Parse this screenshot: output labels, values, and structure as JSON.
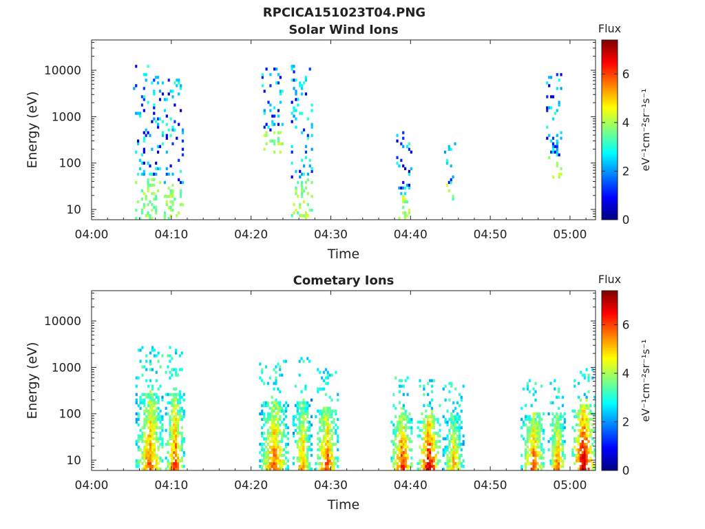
{
  "figure": {
    "title": "RPCICA151023T04.PNG"
  },
  "chart_data": [
    {
      "type": "heatmap",
      "title": "Solar Wind Ions",
      "xlabel": "Time",
      "ylabel": "Energy (eV)",
      "x_ticks": [
        "04:00",
        "04:10",
        "04:20",
        "04:30",
        "04:40",
        "04:50",
        "05:00"
      ],
      "x_tick_minutes": [
        0,
        10,
        20,
        30,
        40,
        50,
        60
      ],
      "xlim_minutes": [
        0,
        63.2
      ],
      "y_scale": "log",
      "y_ticks": [
        "10",
        "100",
        "1000",
        "10000"
      ],
      "y_tick_values": [
        10,
        100,
        1000,
        10000
      ],
      "ylim": [
        6,
        45000
      ],
      "grid": false,
      "colorbar": {
        "title": "Flux",
        "label": "eV⁻¹cm⁻²sr⁻¹s⁻¹",
        "ticks": [
          "0",
          "2",
          "4",
          "6"
        ],
        "tick_values": [
          0,
          2,
          4,
          6
        ],
        "range": [
          0,
          7.4
        ],
        "colormap": "jet"
      },
      "bursts": [
        {
          "t_start": 5.2,
          "t_end": 8.6,
          "e_low": 6,
          "e_high": 17000,
          "flux": 2.8
        },
        {
          "t_start": 8.8,
          "t_end": 11.4,
          "e_low": 6,
          "e_high": 7000,
          "flux": 2.6
        },
        {
          "t_start": 21.3,
          "t_end": 24.0,
          "e_low": 150,
          "e_high": 13000,
          "flux": 2.2
        },
        {
          "t_start": 25.0,
          "t_end": 27.6,
          "e_low": 6,
          "e_high": 15000,
          "flux": 2.3
        },
        {
          "t_start": 38.2,
          "t_end": 40.0,
          "e_low": 6,
          "e_high": 700,
          "flux": 2.5
        },
        {
          "t_start": 44.2,
          "t_end": 45.6,
          "e_low": 15,
          "e_high": 300,
          "flux": 2.3
        },
        {
          "t_start": 57.0,
          "t_end": 59.0,
          "e_low": 30,
          "e_high": 12000,
          "flux": 2.1
        }
      ]
    },
    {
      "type": "heatmap",
      "title": "Cometary Ions",
      "xlabel": "Time",
      "ylabel": "Energy (eV)",
      "x_ticks": [
        "04:00",
        "04:10",
        "04:20",
        "04:30",
        "04:40",
        "04:50",
        "05:00"
      ],
      "x_tick_minutes": [
        0,
        10,
        20,
        30,
        40,
        50,
        60
      ],
      "xlim_minutes": [
        0,
        63.2
      ],
      "y_scale": "log",
      "y_ticks": [
        "10",
        "100",
        "1000",
        "10000"
      ],
      "y_tick_values": [
        10,
        100,
        1000,
        10000
      ],
      "ylim": [
        6,
        45000
      ],
      "grid": false,
      "colorbar": {
        "title": "Flux",
        "label": "eV⁻¹cm⁻²sr⁻¹s⁻¹",
        "ticks": [
          "0",
          "2",
          "4",
          "6"
        ],
        "tick_values": [
          0,
          2,
          4,
          6
        ],
        "range": [
          0,
          7.4
        ],
        "colormap": "jet"
      },
      "bursts": [
        {
          "t_start": 5.5,
          "t_end": 9.0,
          "e_low": 6,
          "e_high": 3300,
          "flux": 5.8
        },
        {
          "t_start": 9.2,
          "t_end": 11.5,
          "e_low": 6,
          "e_high": 3000,
          "flux": 6.0
        },
        {
          "t_start": 21.0,
          "t_end": 24.6,
          "e_low": 6,
          "e_high": 1600,
          "flux": 5.8
        },
        {
          "t_start": 25.2,
          "t_end": 27.5,
          "e_low": 6,
          "e_high": 1700,
          "flux": 5.5
        },
        {
          "t_start": 28.0,
          "t_end": 30.8,
          "e_low": 6,
          "e_high": 1000,
          "flux": 6.0
        },
        {
          "t_start": 37.5,
          "t_end": 40.2,
          "e_low": 6,
          "e_high": 700,
          "flux": 6.2
        },
        {
          "t_start": 40.8,
          "t_end": 43.6,
          "e_low": 6,
          "e_high": 560,
          "flux": 6.8
        },
        {
          "t_start": 44.0,
          "t_end": 46.6,
          "e_low": 6,
          "e_high": 500,
          "flux": 5.2
        },
        {
          "t_start": 53.8,
          "t_end": 56.8,
          "e_low": 6,
          "e_high": 700,
          "flux": 5.8
        },
        {
          "t_start": 57.2,
          "t_end": 59.4,
          "e_low": 6,
          "e_high": 700,
          "flux": 5.6
        },
        {
          "t_start": 60.2,
          "t_end": 63.0,
          "e_low": 6,
          "e_high": 1200,
          "flux": 7.0
        }
      ]
    }
  ]
}
